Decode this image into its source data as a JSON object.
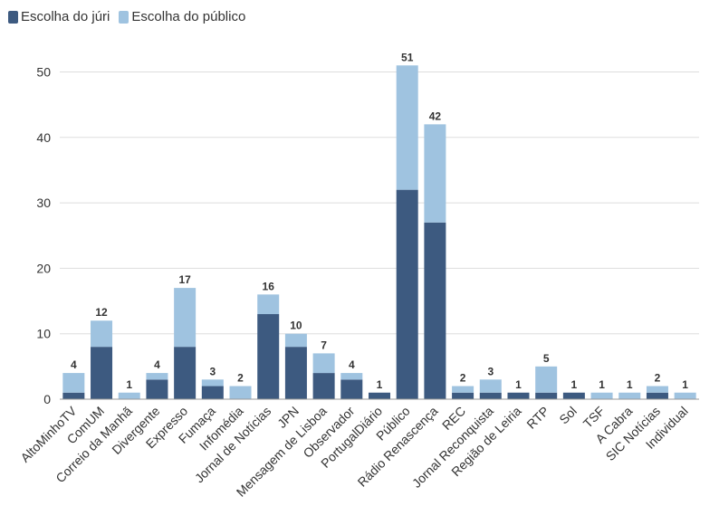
{
  "colors": {
    "jury": "#3d5a80",
    "public": "#9fc3e0",
    "grid": "#dddddd",
    "axis": "#999999",
    "text": "#333333"
  },
  "chart_data": {
    "type": "bar",
    "stacked": true,
    "categories": [
      "AltoMinhoTV",
      "ComUM",
      "Correio da Manhã",
      "Divergente",
      "Expresso",
      "Fumaça",
      "Infomédia",
      "Jornal de Notícias",
      "JPN",
      "Mensagem de Lisboa",
      "Observador",
      "PortugalDiário",
      "Público",
      "Rádio Renascença",
      "REC",
      "Jornal Reconquista",
      "Região de Leiria",
      "RTP",
      "Sol",
      "TSF",
      "A Cabra",
      "SIC Notícias",
      "Individual"
    ],
    "series": [
      {
        "name": "Escolha do júri",
        "values": [
          1,
          8,
          0,
          3,
          8,
          2,
          0,
          13,
          8,
          4,
          3,
          1,
          32,
          27,
          1,
          1,
          1,
          1,
          1,
          0,
          0,
          1,
          0
        ]
      },
      {
        "name": "Escolha do público",
        "values": [
          3,
          4,
          1,
          1,
          9,
          1,
          2,
          3,
          2,
          3,
          1,
          0,
          19,
          15,
          1,
          2,
          0,
          4,
          0,
          1,
          1,
          1,
          1
        ]
      }
    ],
    "totals": [
      "4",
      "12",
      "1",
      "4",
      "17",
      "3",
      "2",
      "16",
      "10",
      "7",
      "4",
      "1",
      "51",
      "42",
      "2",
      "3",
      "1",
      "5",
      "1",
      "1",
      "1",
      "2",
      "1"
    ],
    "ylim": [
      0,
      55
    ],
    "yticks": [
      "0",
      "10",
      "20",
      "30",
      "40",
      "50"
    ],
    "legend_position": "top-left",
    "grid": true
  }
}
